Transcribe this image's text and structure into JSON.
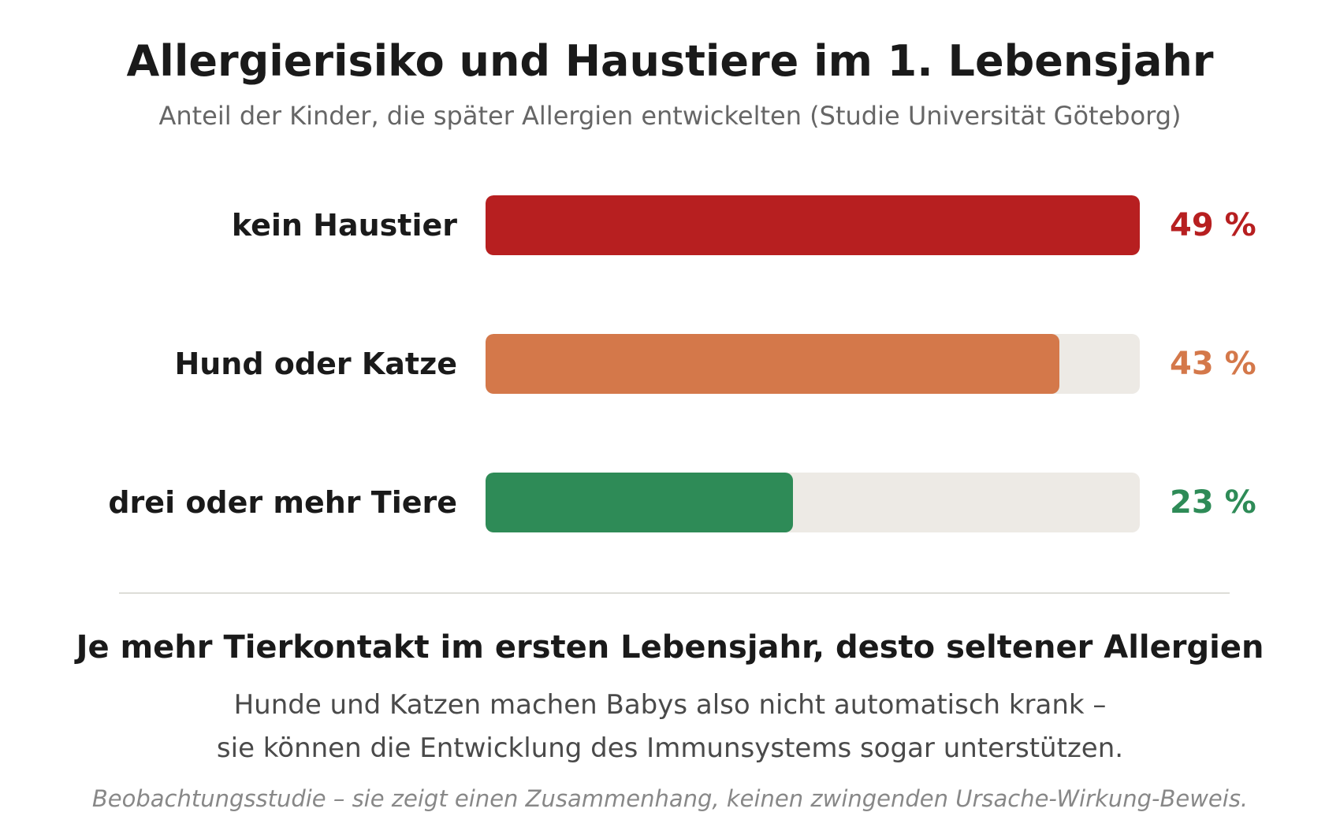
{
  "header": {
    "title": "Allergierisiko und Haustiere im 1. Lebensjahr",
    "subtitle": "Anteil der Kinder, die später Allergien entwickelten (Studie Universität Göteborg)"
  },
  "chart_data": {
    "type": "bar",
    "orientation": "horizontal",
    "title": "Allergierisiko und Haustiere im 1. Lebensjahr",
    "subtitle": "Anteil der Kinder, die später Allergien entwickelten (Studie Universität Göteborg)",
    "categories": [
      "kein Haustier",
      "Hund oder Katze",
      "drei oder mehr Tiere"
    ],
    "values": [
      49,
      43,
      23
    ],
    "value_labels": [
      "49 %",
      "43 %",
      "23 %"
    ],
    "colors": [
      "#b71f20",
      "#d4784a",
      "#2e8b57"
    ],
    "track_color": "#edeae5",
    "xlim": [
      0,
      49
    ],
    "grid": false,
    "legend": "none"
  },
  "footer": {
    "headline": "Je mehr Tierkontakt im ersten Lebensjahr, desto seltener Allergien",
    "body_line_1": "Hunde und Katzen machen Babys also nicht automatisch krank –",
    "body_line_2": "sie können die Entwicklung des Immunsystems sogar unterstützen.",
    "note": "Beobachtungsstudie – sie zeigt einen Zusammenhang, keinen zwingenden Ursache-Wirkung-Beweis."
  }
}
